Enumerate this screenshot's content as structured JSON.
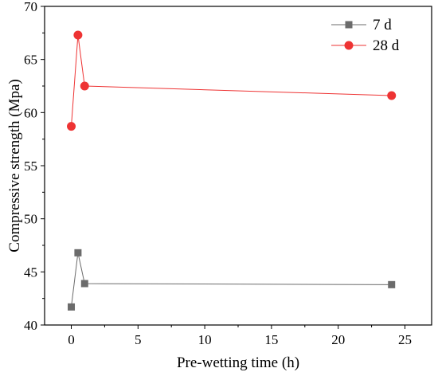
{
  "chart_data": {
    "type": "line",
    "xlabel": "Pre-wetting time (h)",
    "ylabel": "Compressive strength (Mpa)",
    "xlim": [
      -2,
      27
    ],
    "ylim": [
      40,
      70
    ],
    "xticks": [
      0,
      5,
      10,
      15,
      20,
      25
    ],
    "yticks": [
      40,
      45,
      50,
      55,
      60,
      65,
      70
    ],
    "grid": false,
    "legend_position": "top-right",
    "series": [
      {
        "name": "7 d",
        "marker": "square",
        "color": "#6b6b6b",
        "x": [
          0,
          0.5,
          1,
          24
        ],
        "y": [
          41.7,
          46.8,
          43.9,
          43.8
        ]
      },
      {
        "name": "28 d",
        "marker": "circle",
        "color": "#ee3333",
        "x": [
          0,
          0.5,
          1,
          24
        ],
        "y": [
          58.7,
          67.3,
          62.5,
          61.6
        ]
      }
    ]
  }
}
